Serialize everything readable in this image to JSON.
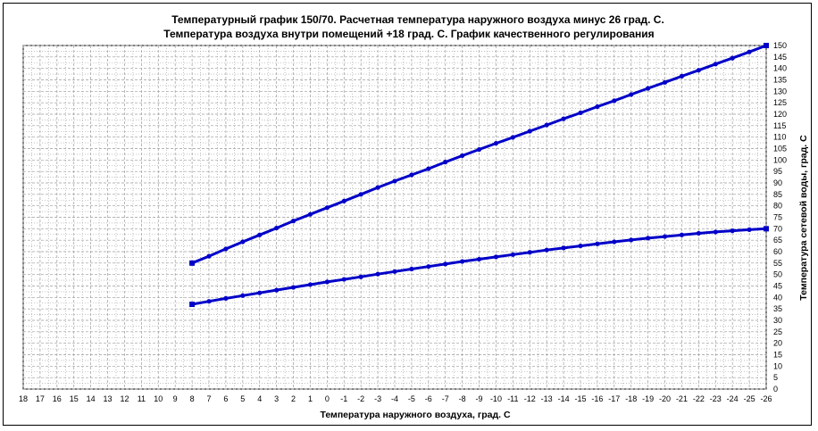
{
  "chart_data": {
    "type": "line",
    "title_lines": [
      "Температурный график 150/70. Расчетная температура наружного воздуха минус 26 град. С.",
      "Температура воздуха внутри помещений +18 град. С. График качественного регулирования"
    ],
    "xlabel": "Температура наружного воздуха, град. С",
    "ylabel": "Температура сетевой воды, град. С",
    "x_ticks": [
      18,
      17,
      16,
      15,
      14,
      13,
      12,
      11,
      10,
      9,
      8,
      7,
      6,
      5,
      4,
      3,
      2,
      1,
      0,
      -1,
      -2,
      -3,
      -4,
      -5,
      -6,
      -7,
      -8,
      -9,
      -10,
      -11,
      -12,
      -13,
      -14,
      -15,
      -16,
      -17,
      -18,
      -19,
      -20,
      -21,
      -22,
      -23,
      -24,
      -25,
      -26
    ],
    "xlim": [
      18,
      -26
    ],
    "ylim": [
      0,
      150
    ],
    "y_ticks": [
      0,
      5,
      10,
      15,
      20,
      25,
      30,
      35,
      40,
      45,
      50,
      55,
      60,
      65,
      70,
      75,
      80,
      85,
      90,
      95,
      100,
      105,
      110,
      115,
      120,
      125,
      130,
      135,
      140,
      145,
      150
    ],
    "grid": true,
    "colors": {
      "series": "#0000c8",
      "grid": "#9a9a9a"
    },
    "x": [
      8,
      7,
      6,
      5,
      4,
      3,
      2,
      1,
      0,
      -1,
      -2,
      -3,
      -4,
      -5,
      -6,
      -7,
      -8,
      -9,
      -10,
      -11,
      -12,
      -13,
      -14,
      -15,
      -16,
      -17,
      -18,
      -19,
      -20,
      -21,
      -22,
      -23,
      -24,
      -25,
      -26
    ],
    "series": [
      {
        "values": [
          55,
          58,
          61.2,
          64.3,
          67.3,
          70.3,
          73.4,
          76.3,
          79.2,
          82.1,
          85,
          88,
          90.8,
          93.5,
          96.2,
          99.1,
          101.9,
          104.6,
          107.3,
          109.9,
          112.6,
          115.3,
          118,
          120.6,
          123.3,
          125.9,
          128.6,
          131.3,
          133.9,
          136.6,
          139.2,
          141.9,
          144.5,
          147.2,
          150
        ]
      },
      {
        "values": [
          37,
          38.3,
          39.6,
          40.8,
          42,
          43.2,
          44.4,
          45.6,
          46.8,
          47.9,
          49,
          50.2,
          51.3,
          52.4,
          53.5,
          54.6,
          55.7,
          56.7,
          57.7,
          58.7,
          59.7,
          60.7,
          61.6,
          62.5,
          63.4,
          64.3,
          65.1,
          65.9,
          66.6,
          67.3,
          68,
          68.6,
          69.1,
          69.6,
          70
        ]
      }
    ]
  }
}
